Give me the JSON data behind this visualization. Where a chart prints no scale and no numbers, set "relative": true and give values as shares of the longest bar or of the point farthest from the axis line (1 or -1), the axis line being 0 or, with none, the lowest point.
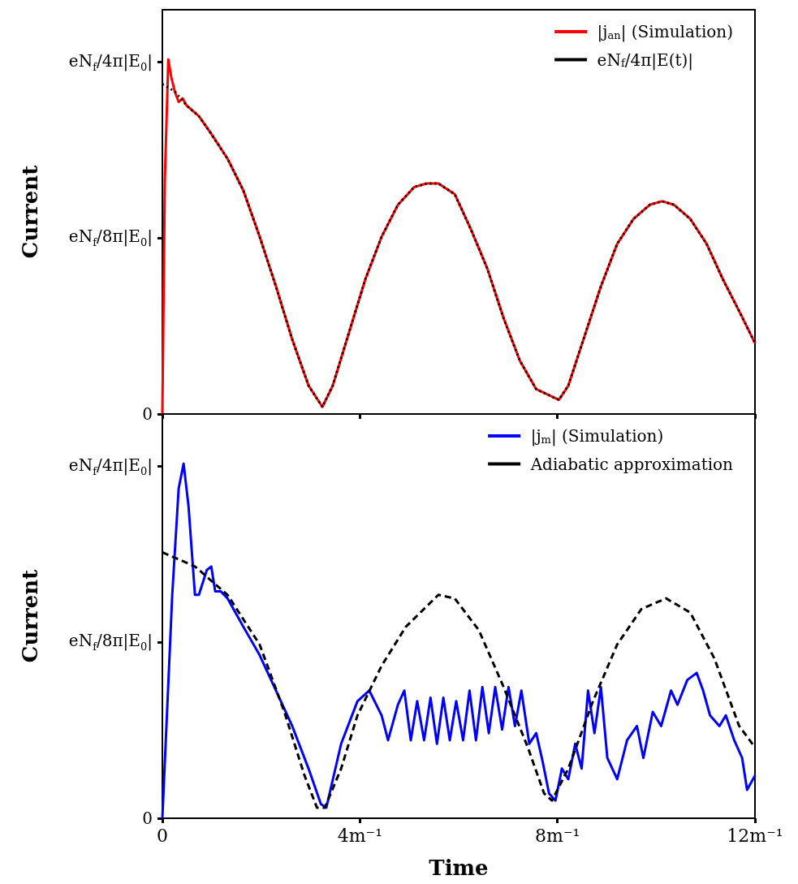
{
  "chart_data": [
    {
      "type": "line",
      "ylabel": "Current",
      "relative": true,
      "xlim": [
        0,
        12
      ],
      "xticks": [
        0,
        4,
        8,
        12
      ],
      "tick_labels": "y",
      "grid": false,
      "legend": "top right",
      "marker": "none",
      "annotations": [
        "0",
        "eN$_{f}$/8π|E$_{0}$|",
        "eN$_{f}$/4π|E$_{0}$|"
      ],
      "series": [
        {
          "name": "|j$_{an}$| (Simulation)",
          "color": "#ff0000",
          "line_style": "solid",
          "x": [
            0,
            0.05,
            0.12,
            0.18,
            0.25,
            0.33,
            0.41,
            0.49,
            0.74,
            0.99,
            1.32,
            1.64,
            1.97,
            2.3,
            2.63,
            2.96,
            3.24,
            3.45,
            3.78,
            4.11,
            4.44,
            4.77,
            5.1,
            5.35,
            5.59,
            5.92,
            6.25,
            6.58,
            6.91,
            7.24,
            7.57,
            8.03,
            8.22,
            8.55,
            8.88,
            9.21,
            9.54,
            9.87,
            10.12,
            10.36,
            10.69,
            11.02,
            11.35,
            11.68,
            12.0
          ],
          "values": [
            0,
            0.66,
            1,
            0.95,
            0.91,
            0.88,
            0.89,
            0.87,
            0.84,
            0.79,
            0.72,
            0.63,
            0.5,
            0.36,
            0.21,
            0.08,
            0.02,
            0.08,
            0.23,
            0.38,
            0.5,
            0.59,
            0.64,
            0.65,
            0.65,
            0.62,
            0.52,
            0.41,
            0.27,
            0.15,
            0.07,
            0.04,
            0.08,
            0.22,
            0.36,
            0.48,
            0.55,
            0.59,
            0.6,
            0.59,
            0.55,
            0.48,
            0.38,
            0.29,
            0.2
          ]
        },
        {
          "name": "eN$_{f}$/4π|E(t)|",
          "color": "#000000",
          "line_style": "dotted",
          "x": [
            0,
            0.25,
            0.49,
            0.74,
            0.99,
            1.32,
            1.64,
            1.97,
            2.3,
            2.63,
            2.96,
            3.24,
            3.45,
            3.78,
            4.11,
            4.44,
            4.77,
            5.1,
            5.35,
            5.59,
            5.92,
            6.25,
            6.58,
            6.91,
            7.24,
            7.57,
            8.03,
            8.22,
            8.55,
            8.88,
            9.21,
            9.54,
            9.87,
            10.12,
            10.36,
            10.69,
            11.02,
            11.35,
            11.68,
            12.0
          ],
          "values": [
            0.93,
            0.91,
            0.87,
            0.84,
            0.79,
            0.72,
            0.63,
            0.5,
            0.36,
            0.21,
            0.08,
            0.02,
            0.08,
            0.23,
            0.38,
            0.5,
            0.59,
            0.64,
            0.65,
            0.65,
            0.62,
            0.52,
            0.41,
            0.27,
            0.15,
            0.07,
            0.04,
            0.08,
            0.22,
            0.36,
            0.48,
            0.55,
            0.59,
            0.6,
            0.59,
            0.55,
            0.48,
            0.38,
            0.29,
            0.2
          ]
        }
      ]
    },
    {
      "type": "line",
      "xlabel": "Time",
      "ylabel": "Current",
      "relative": true,
      "xlim": [
        0,
        12
      ],
      "xticks": [
        0,
        {
          "value": 4,
          "label": "4m⁻¹"
        },
        {
          "value": 8,
          "label": "8m⁻¹"
        },
        {
          "value": 12,
          "label": "12m⁻¹"
        }
      ],
      "grid": false,
      "legend": "top right",
      "marker": "none",
      "annotations": [
        "0",
        "eN$_{f}$/8π|E$_{0}$|",
        "eN$_{f}$/4π|E$_{0}$|"
      ],
      "series": [
        {
          "name": "|j$_{m}$| (Simulation)",
          "color": "#0000ff",
          "line_style": "solid",
          "x": [
            0,
            0.2,
            0.33,
            0.43,
            0.53,
            0.66,
            0.74,
            0.9,
            0.99,
            1.07,
            1.18,
            1.32,
            1.64,
            1.97,
            2.3,
            2.63,
            2.96,
            3.21,
            3.32,
            3.62,
            3.95,
            4.19,
            4.44,
            4.57,
            4.77,
            4.9,
            5.03,
            5.16,
            5.3,
            5.43,
            5.56,
            5.69,
            5.82,
            5.95,
            6.09,
            6.22,
            6.35,
            6.48,
            6.61,
            6.74,
            6.88,
            7.01,
            7.14,
            7.27,
            7.43,
            7.57,
            7.7,
            7.83,
            7.96,
            8.09,
            8.22,
            8.36,
            8.49,
            8.62,
            8.75,
            8.88,
            9.01,
            9.21,
            9.41,
            9.61,
            9.74,
            9.93,
            10.1,
            10.3,
            10.43,
            10.63,
            10.82,
            10.95,
            11.09,
            11.28,
            11.41,
            11.58,
            11.74,
            11.84,
            12.0
          ],
          "values": [
            0,
            0.63,
            0.93,
            1,
            0.88,
            0.63,
            0.63,
            0.7,
            0.71,
            0.64,
            0.64,
            0.62,
            0.54,
            0.46,
            0.36,
            0.26,
            0.14,
            0.04,
            0.03,
            0.21,
            0.33,
            0.36,
            0.29,
            0.22,
            0.32,
            0.36,
            0.22,
            0.33,
            0.22,
            0.34,
            0.21,
            0.34,
            0.22,
            0.33,
            0.22,
            0.36,
            0.22,
            0.37,
            0.24,
            0.37,
            0.25,
            0.37,
            0.26,
            0.36,
            0.21,
            0.24,
            0.16,
            0.07,
            0.05,
            0.14,
            0.11,
            0.21,
            0.14,
            0.36,
            0.24,
            0.37,
            0.17,
            0.11,
            0.22,
            0.26,
            0.17,
            0.3,
            0.26,
            0.36,
            0.32,
            0.39,
            0.41,
            0.36,
            0.29,
            0.26,
            0.29,
            0.22,
            0.17,
            0.08,
            0.12
          ]
        },
        {
          "name": "Adiabatic approximation",
          "color": "#000000",
          "line_style": "dashed",
          "x": [
            0,
            0.66,
            1.32,
            1.97,
            2.47,
            2.88,
            3.13,
            3.29,
            3.62,
            3.95,
            4.44,
            4.93,
            5.59,
            5.92,
            6.41,
            6.91,
            7.4,
            7.73,
            7.89,
            8.22,
            8.72,
            9.21,
            9.7,
            10.2,
            10.69,
            11.18,
            11.68,
            12.0
          ],
          "values": [
            0.75,
            0.71,
            0.63,
            0.49,
            0.3,
            0.12,
            0.03,
            0.03,
            0.14,
            0.29,
            0.43,
            0.54,
            0.63,
            0.62,
            0.53,
            0.37,
            0.2,
            0.07,
            0.05,
            0.14,
            0.33,
            0.49,
            0.59,
            0.62,
            0.58,
            0.45,
            0.26,
            0.2
          ]
        }
      ]
    }
  ]
}
